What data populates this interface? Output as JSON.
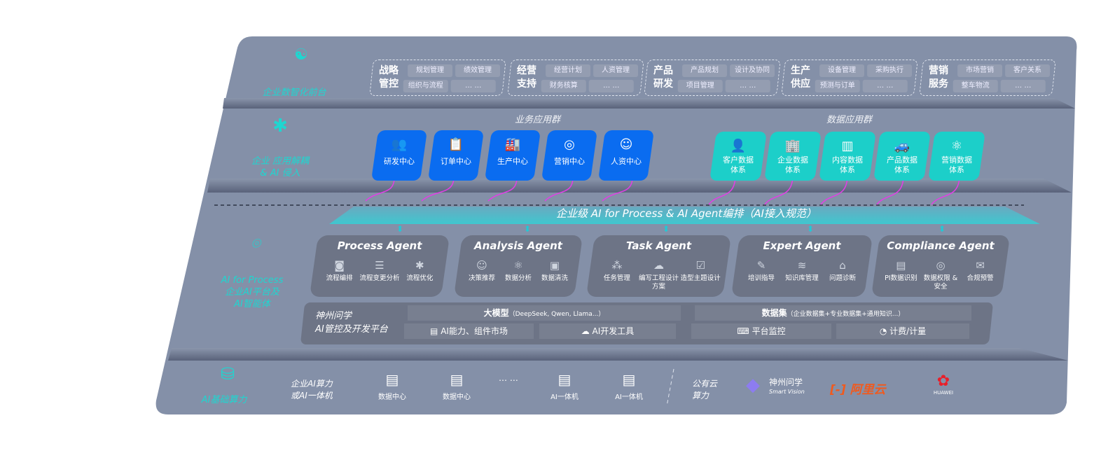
{
  "layers": {
    "front": {
      "label": "企业数智化前台",
      "icon": "brain-icon"
    },
    "apps": {
      "label_1": "企业 应用解耦",
      "label_2": "& AI 侵入",
      "icon": "molecule-icon"
    },
    "ai": {
      "label_1": "AI for Process",
      "label_2": "企业AI平台及",
      "label_3": "AI智能体",
      "icon": "face-scan-icon"
    },
    "infra": {
      "label": "AI基础算力",
      "icon": "database-icon"
    }
  },
  "front_groups": [
    {
      "t1": "战略",
      "t2": "管控",
      "chips": [
        "规划管理",
        "绩效管理",
        "组织与流程",
        "… …"
      ]
    },
    {
      "t1": "经营",
      "t2": "支持",
      "chips": [
        "经营计划",
        "人资管理",
        "财务核算",
        "… …"
      ]
    },
    {
      "t1": "产品",
      "t2": "研发",
      "chips": [
        "产品规划",
        "设计及协同",
        "项目管理",
        "… …"
      ]
    },
    {
      "t1": "生产",
      "t2": "供应",
      "chips": [
        "设备管理",
        "采购执行",
        "预测与订单",
        "… …"
      ]
    },
    {
      "t1": "营销",
      "t2": "服务",
      "chips": [
        "市场营销",
        "客户关系",
        "整车物流",
        "… …"
      ]
    }
  ],
  "business_title": "业务应用群",
  "business_apps": [
    {
      "label": "研发中心",
      "icon": "users-icon"
    },
    {
      "label": "订单中心",
      "icon": "clipboard-icon"
    },
    {
      "label": "生产中心",
      "icon": "factory-icon"
    },
    {
      "label": "营销中心",
      "icon": "target-icon"
    },
    {
      "label": "人资中心",
      "icon": "person-icon"
    }
  ],
  "data_title": "数据应用群",
  "data_apps": [
    {
      "l1": "客户数据",
      "l2": "体系",
      "icon": "user-icon"
    },
    {
      "l1": "企业数据",
      "l2": "体系",
      "icon": "building-icon"
    },
    {
      "l1": "内容数据",
      "l2": "体系",
      "icon": "books-icon"
    },
    {
      "l1": "产品数据",
      "l2": "体系",
      "icon": "car-icon"
    },
    {
      "l1": "营销数据",
      "l2": "体系",
      "icon": "atom-icon"
    }
  ],
  "orchestration": "企业级 AI for Process & AI Agent编排（AI接入规范）",
  "agents": [
    {
      "name": "Process Agent",
      "items": [
        {
          "l": "流程编排",
          "i": "◙"
        },
        {
          "l": "流程变更分析",
          "i": "☰"
        },
        {
          "l": "流程优化",
          "i": "✱"
        }
      ]
    },
    {
      "name": "Analysis Agent",
      "items": [
        {
          "l": "决策推荐",
          "i": "☺"
        },
        {
          "l": "数据分析",
          "i": "⚛"
        },
        {
          "l": "数据清洗",
          "i": "▣"
        }
      ]
    },
    {
      "name": "Task Agent",
      "items": [
        {
          "l": "任务管理",
          "i": "⁂"
        },
        {
          "l": "编写工程设计方案",
          "i": "☁"
        },
        {
          "l": "造型主题设计",
          "i": "☑"
        }
      ]
    },
    {
      "name": "Expert Agent",
      "items": [
        {
          "l": "培训指导",
          "i": "✎"
        },
        {
          "l": "知识库管理",
          "i": "≋"
        },
        {
          "l": "问题诊断",
          "i": "⌂"
        }
      ]
    },
    {
      "name": "Compliance Agent",
      "items": [
        {
          "l": "PI数据识别",
          "i": "▤"
        },
        {
          "l": "数据权限 & 安全",
          "i": "◎"
        },
        {
          "l": "合规预警",
          "i": "✉"
        }
      ]
    }
  ],
  "platform": {
    "title_1": "神州问学",
    "title_2": "AI管控及开发平台",
    "llm": "大模型",
    "llm_note": "（DeepSeek, Qwen, Llama...）",
    "dataset": "数据集",
    "dataset_note": "（企业数据集+专业数据集+通用知识...）",
    "market": "AI能力、组件市场",
    "devtools": "AI开发工具",
    "monitor": "平台监控",
    "billing": "计费/计量"
  },
  "infra": {
    "private_1": "企业AI算力",
    "private_2": "或AI一体机",
    "servers": [
      "数据中心",
      "数据中心",
      "AI一体机",
      "AI一体机"
    ],
    "ellipsis": "… …",
    "public_1": "公有云",
    "public_2": "算力",
    "vendors": {
      "shenzhou": "神州问学",
      "shenzhou_sub": "Smart Vision",
      "aliyun": "阿里云",
      "huawei": "HUAWEI"
    }
  },
  "colors": {
    "panel": "#8490a8",
    "accent": "#1fd6d0",
    "blue": "#0a6cf0",
    "teal": "#1ccfc9",
    "card": "#6d7486",
    "magenta": "#e23ee6"
  }
}
